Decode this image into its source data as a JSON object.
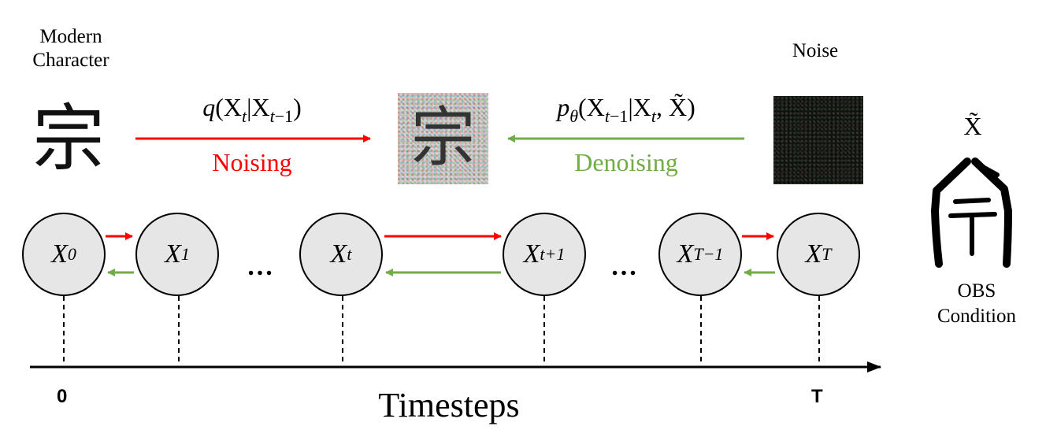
{
  "modern_caption": {
    "line1": "Modern",
    "line2": "Character"
  },
  "noise_caption": "Noise",
  "character": "宗",
  "forward": {
    "formula_func": "q",
    "label": "Noising"
  },
  "reverse": {
    "formula_func": "p",
    "label": "Denoising"
  },
  "nodes": [
    {
      "var": "X",
      "sub": "0"
    },
    {
      "var": "X",
      "sub": "1"
    },
    {
      "var": "X",
      "sub": "t"
    },
    {
      "var": "X",
      "sub": "t+1"
    },
    {
      "var": "X",
      "sub": "T−1"
    },
    {
      "var": "X",
      "sub": "T"
    }
  ],
  "ellipsis": "…",
  "axis": {
    "label": "Timesteps",
    "start": "0",
    "end": "T"
  },
  "condition": {
    "symbol": "X̃",
    "line1": "OBS",
    "line2": "Condition"
  },
  "colors": {
    "forward": "#ff0000",
    "reverse": "#70ad47",
    "node_fill": "#e6e6e6"
  }
}
